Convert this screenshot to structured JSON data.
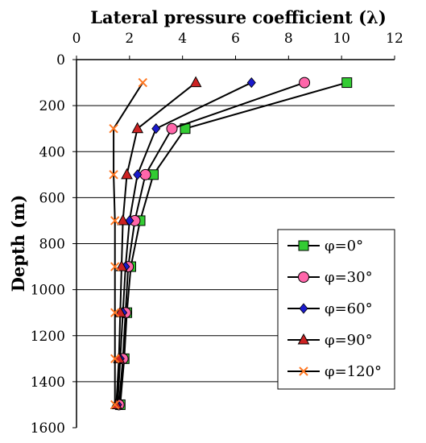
{
  "chart_data": {
    "type": "line",
    "title": "Lateral pressure coefficient (λ)",
    "xlabel": "Lateral pressure coefficient (λ)",
    "ylabel": "Depth (m)",
    "x_axis_position": "top",
    "y_axis_inverted": true,
    "xlim": [
      0,
      12
    ],
    "ylim": [
      0,
      1600
    ],
    "x_ticks": [
      "0",
      "2",
      "4",
      "6",
      "8",
      "10",
      "12"
    ],
    "y_ticks": [
      "0",
      "200",
      "400",
      "600",
      "800",
      "1000",
      "1200",
      "1400",
      "1600"
    ],
    "grid": "horizontal",
    "legend_position": "bottom-right",
    "depths": [
      100,
      300,
      500,
      700,
      900,
      1100,
      1300,
      1500
    ],
    "series": [
      {
        "name": "φ=0°",
        "marker": "square",
        "color": "#33cc33",
        "x": [
          10.2,
          4.1,
          2.9,
          2.4,
          2.05,
          1.9,
          1.8,
          1.65
        ]
      },
      {
        "name": "φ=30°",
        "marker": "circle",
        "color": "#ff66aa",
        "x": [
          8.6,
          3.6,
          2.6,
          2.2,
          1.95,
          1.85,
          1.75,
          1.6
        ]
      },
      {
        "name": "φ=60°",
        "marker": "diamond",
        "color": "#1a1acc",
        "x": [
          6.6,
          3.0,
          2.3,
          2.0,
          1.85,
          1.75,
          1.65,
          1.55
        ]
      },
      {
        "name": "φ=90°",
        "marker": "triangle",
        "color": "#cc2222",
        "x": [
          4.5,
          2.3,
          1.9,
          1.75,
          1.7,
          1.65,
          1.6,
          1.5
        ]
      },
      {
        "name": "φ=120°",
        "marker": "cross",
        "color": "#ff7722",
        "x": [
          2.5,
          1.4,
          1.4,
          1.45,
          1.45,
          1.45,
          1.45,
          1.45
        ]
      }
    ]
  }
}
